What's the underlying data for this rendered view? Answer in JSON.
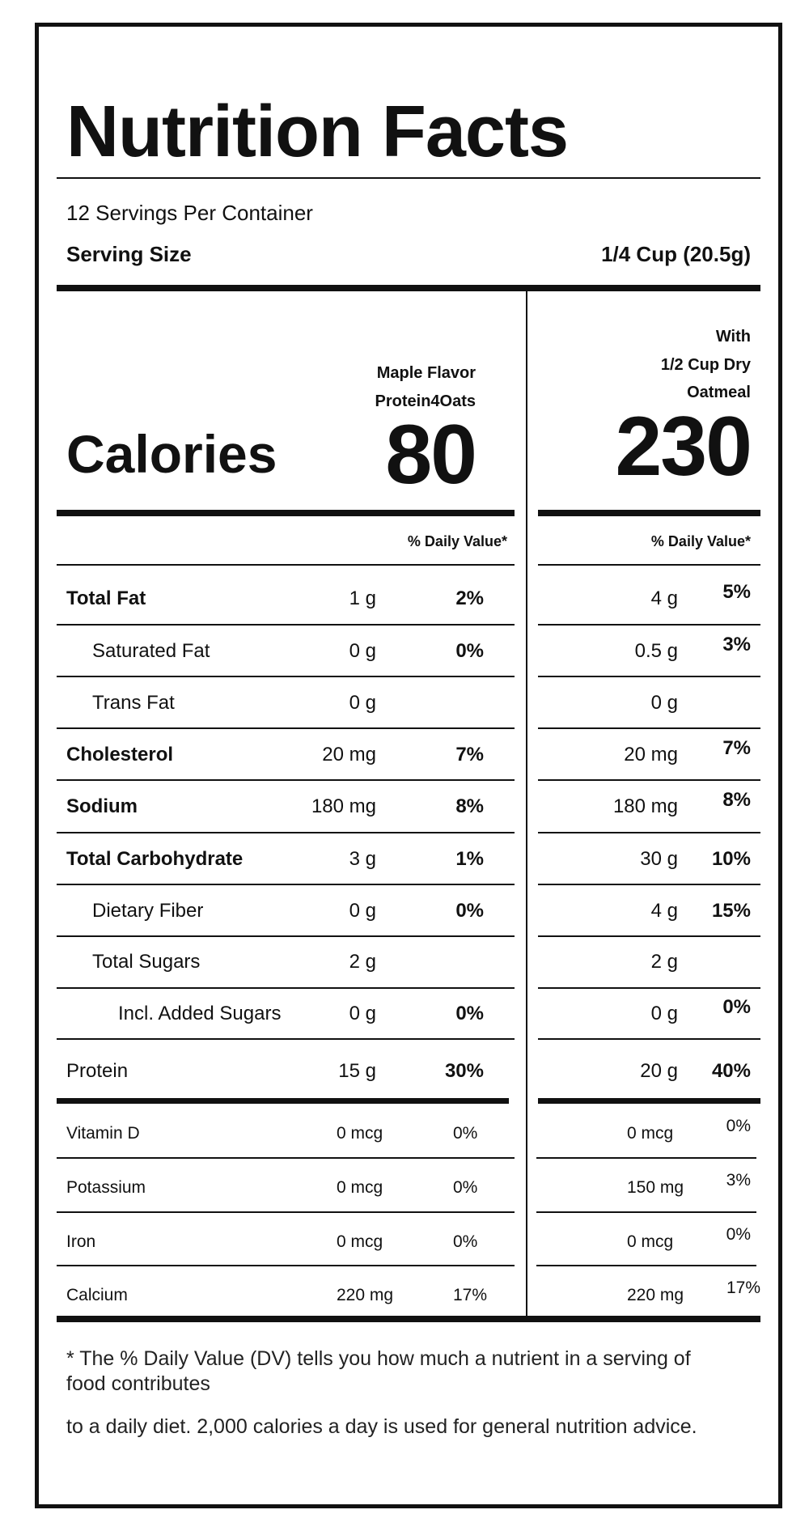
{
  "title": "Nutrition Facts",
  "servings_per_container": "12 Servings Per Container",
  "serving_size_label": "Serving Size",
  "serving_size_value": "1/4 Cup (20.5g)",
  "calories_label": "Calories",
  "columns": [
    {
      "heading_lines": [
        "Maple Flavor",
        "Protein4Oats"
      ],
      "calories": "80",
      "dv_header": "% Daily Value*"
    },
    {
      "heading_lines": [
        "With",
        "1/2 Cup Dry",
        "Oatmeal"
      ],
      "calories": "230",
      "dv_header": "% Daily Value*"
    }
  ],
  "nutrients": [
    {
      "name": "Total Fat",
      "bold": true,
      "indent": 0,
      "amount": "1 g",
      "dv": "2%",
      "with_amount": "4 g",
      "with_dv": "5%"
    },
    {
      "name": "Saturated Fat",
      "bold": false,
      "indent": 1,
      "amount": "0 g",
      "dv": "0%",
      "with_amount": "0.5 g",
      "with_dv": "3%"
    },
    {
      "name": "Trans Fat",
      "bold": false,
      "indent": 1,
      "amount": "0 g",
      "dv": "",
      "with_amount": "0 g",
      "with_dv": ""
    },
    {
      "name": "Cholesterol",
      "bold": true,
      "indent": 0,
      "amount": "20 mg",
      "dv": "7%",
      "with_amount": "20 mg",
      "with_dv": "7%"
    },
    {
      "name": "Sodium",
      "bold": true,
      "indent": 0,
      "amount": "180 mg",
      "dv": "8%",
      "with_amount": "180 mg",
      "with_dv": "8%"
    },
    {
      "name": "Total Carbohydrate",
      "bold": true,
      "indent": 0,
      "amount": "3 g",
      "dv": "1%",
      "with_amount": "30 g",
      "with_dv": "10%"
    },
    {
      "name": "Dietary Fiber",
      "bold": false,
      "indent": 1,
      "amount": "0 g",
      "dv": "0%",
      "with_amount": "4 g",
      "with_dv": "15%"
    },
    {
      "name": "Total Sugars",
      "bold": false,
      "indent": 1,
      "amount": "2 g",
      "dv": "",
      "with_amount": "2 g",
      "with_dv": ""
    },
    {
      "name": "Incl. Added Sugars",
      "bold": false,
      "indent": 2,
      "amount": "0 g",
      "dv": "0%",
      "with_amount": "0 g",
      "with_dv": "0%"
    },
    {
      "name": "Protein",
      "bold": false,
      "indent": 0,
      "amount": "15 g",
      "dv": "30%",
      "with_amount": "20 g",
      "with_dv": "40%"
    }
  ],
  "vitamins": [
    {
      "name": "Vitamin D",
      "amount": "0 mcg",
      "dv": "0%",
      "with_amount": "0 mcg",
      "with_dv": "0%"
    },
    {
      "name": "Potassium",
      "amount": "0 mcg",
      "dv": "0%",
      "with_amount": "150 mg",
      "with_dv": "3%"
    },
    {
      "name": "Iron",
      "amount": "0 mcg",
      "dv": "0%",
      "with_amount": "0 mcg",
      "with_dv": "0%"
    },
    {
      "name": "Calcium",
      "amount": "220 mg",
      "dv": "17%",
      "with_amount": "220 mg",
      "with_dv": "17%"
    }
  ],
  "footnote_lines": [
    "* The % Daily Value (DV) tells you how much a nutrient in a serving of",
    "food contributes",
    "to a daily diet. 2,000 calories a day is used for general nutrition advice."
  ]
}
